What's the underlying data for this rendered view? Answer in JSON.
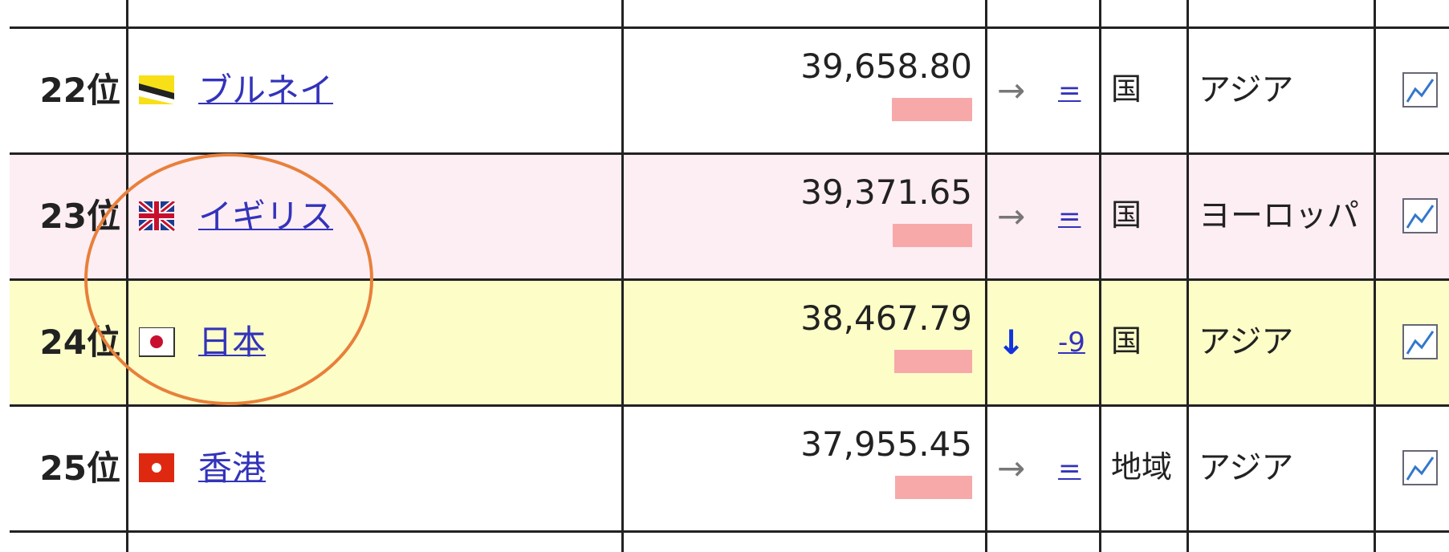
{
  "table": {
    "rows": [
      {
        "rank": "22位",
        "name": "ブルネイ",
        "value": "39,658.80",
        "trend": "→",
        "change": "=",
        "kind": "国",
        "region": "アジア"
      },
      {
        "rank": "23位",
        "name": "イギリス",
        "value": "39,371.65",
        "trend": "→",
        "change": "=",
        "kind": "国",
        "region": "ヨーロッパ"
      },
      {
        "rank": "24位",
        "name": "日本",
        "value": "38,467.79",
        "trend": "↓",
        "change": "-9",
        "kind": "国",
        "region": "アジア"
      },
      {
        "rank": "25位",
        "name": "香港",
        "value": "37,955.45",
        "trend": "→",
        "change": "=",
        "kind": "地域",
        "region": "アジア"
      }
    ]
  }
}
